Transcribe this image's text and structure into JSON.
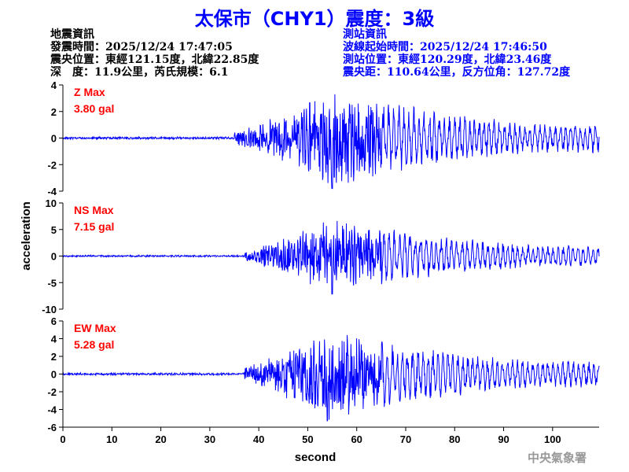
{
  "title": "太保市（CHY1）震度：3級",
  "quake_info": {
    "heading": "地震資訊",
    "origin_time": "發震時間：2025/12/24 17:47:05",
    "epicenter": "震央位置：東經121.15度，北緯22.85度",
    "depth_magnitude": "深　度：11.9公里，芮氏規模：6.1"
  },
  "station_info": {
    "heading": "測站資訊",
    "start_time": "波線起始時間：2025/12/24 17:46:50",
    "location": "測站位置：東經120.29度，北緯23.46度",
    "distance": "震央距：110.64公里，反方位角：127.72度"
  },
  "watermark": "中央氣象署",
  "colors": {
    "trace": "#0000ff",
    "label": "#ff0000",
    "title": "#0000ff"
  },
  "chart_data": {
    "type": "line",
    "xlabel": "second",
    "ylabel": "acceleration",
    "xlim": [
      0,
      109.5
    ],
    "xticks": [
      0,
      10,
      20,
      30,
      40,
      50,
      60,
      70,
      80,
      90,
      100
    ],
    "grid": false,
    "series": [
      {
        "name": "Z",
        "label": "Z Max",
        "max_text": "3.80 gal",
        "max": 3.8,
        "ylim": [
          -4,
          4
        ],
        "yticks": [
          -4,
          -2,
          0,
          2,
          4
        ],
        "onset_s": 35,
        "peak_s": 55,
        "seed": 11
      },
      {
        "name": "NS",
        "label": "NS Max",
        "max_text": "7.15 gal",
        "max": 7.15,
        "ylim": [
          -10,
          10
        ],
        "yticks": [
          -10,
          -5,
          0,
          5,
          10
        ],
        "onset_s": 37,
        "peak_s": 55,
        "seed": 23
      },
      {
        "name": "EW",
        "label": "EW Max",
        "max_text": "5.28 gal",
        "max": 5.28,
        "ylim": [
          -6,
          6
        ],
        "yticks": [
          -6,
          -4,
          -2,
          0,
          2,
          4,
          6
        ],
        "onset_s": 37,
        "peak_s": 54,
        "seed": 37
      }
    ]
  }
}
